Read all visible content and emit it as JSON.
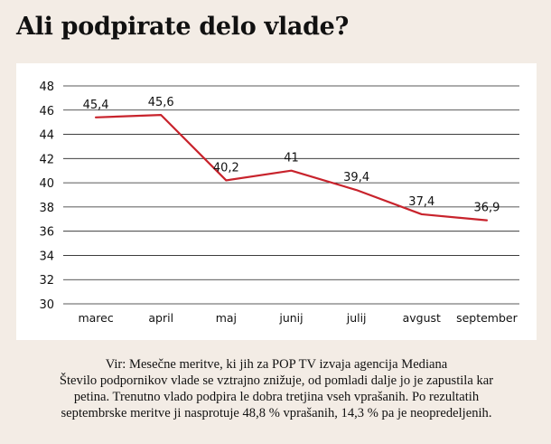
{
  "page": {
    "title": "Ali podpirate delo vlade?",
    "caption": {
      "source": "Vir: Mesečne meritve, ki jih za POP TV izvaja agencija Mediana",
      "line2": "Število podpornikov vlade se vztrajno znižuje, od pomladi dalje jo je zapustila kar",
      "line3": "petina. Trenutno vlado podpira le dobra tretjina vseh vprašanih. Po rezultatih",
      "line4": "septembrske meritve ji nasprotuje 48,8 % vprašanih, 14,3 % pa je neopredeljenih."
    }
  },
  "chart_data": {
    "type": "line",
    "title": "Ali podpirate delo vlade?",
    "categories": [
      "marec",
      "april",
      "maj",
      "junij",
      "julij",
      "avgust",
      "september"
    ],
    "series": [
      {
        "values": [
          45.4,
          45.6,
          40.2,
          41,
          39.4,
          37.4,
          36.9
        ],
        "labels": [
          "45,4",
          "45,6",
          "40,2",
          "41",
          "39,4",
          "37,4",
          "36,9"
        ],
        "color": "#c8232c"
      }
    ],
    "ylim": [
      30,
      48
    ],
    "yticks": [
      30,
      32,
      34,
      36,
      38,
      40,
      42,
      44,
      46,
      48
    ],
    "grid": true,
    "legend": "none"
  }
}
